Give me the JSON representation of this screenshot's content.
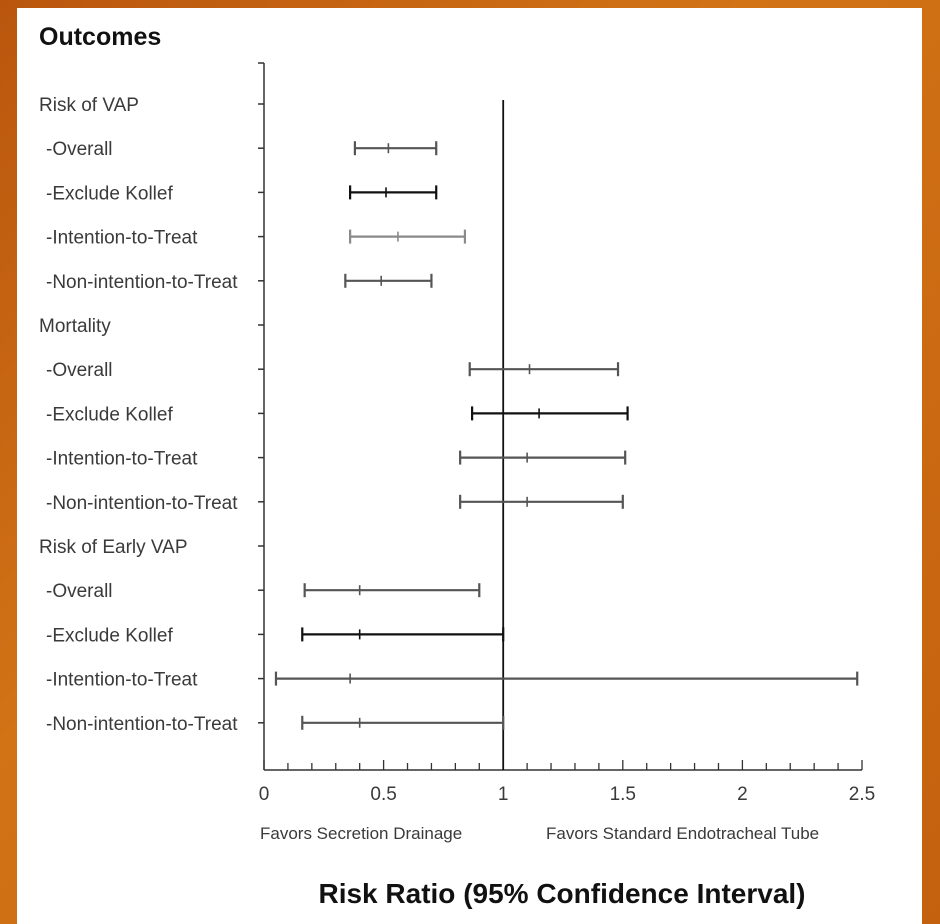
{
  "chart_data": {
    "type": "forest",
    "title": "Outcomes",
    "xlabel": "Risk Ratio (95% Confidence Interval)",
    "favors_left": "Favors Secretion Drainage",
    "favors_right": "Favors Standard Endotracheal Tube",
    "xlim": [
      0,
      2.5
    ],
    "xticks": [
      0,
      0.5,
      1,
      1.5,
      2,
      2.5
    ],
    "xtick_labels": [
      "0",
      "0.5",
      "1",
      "1.5",
      "2",
      "2.5"
    ],
    "reference_line": 1,
    "rows": [
      {
        "label": "Risk of VAP",
        "header": true
      },
      {
        "label": "-Overall",
        "estimate": 0.52,
        "lower": 0.38,
        "upper": 0.72,
        "color": "#555555"
      },
      {
        "label": "-Exclude Kollef",
        "estimate": 0.51,
        "lower": 0.36,
        "upper": 0.72,
        "color": "#111111"
      },
      {
        "label": "-Intention-to-Treat",
        "estimate": 0.56,
        "lower": 0.36,
        "upper": 0.84,
        "color": "#8a8a8a"
      },
      {
        "label": "-Non-intention-to-Treat",
        "estimate": 0.49,
        "lower": 0.34,
        "upper": 0.7,
        "color": "#555555"
      },
      {
        "label": "Mortality",
        "header": true
      },
      {
        "label": "-Overall",
        "estimate": 1.11,
        "lower": 0.86,
        "upper": 1.48,
        "color": "#555555"
      },
      {
        "label": "-Exclude Kollef",
        "estimate": 1.15,
        "lower": 0.87,
        "upper": 1.52,
        "color": "#111111"
      },
      {
        "label": "-Intention-to-Treat",
        "estimate": 1.1,
        "lower": 0.82,
        "upper": 1.51,
        "color": "#555555"
      },
      {
        "label": "-Non-intention-to-Treat",
        "estimate": 1.1,
        "lower": 0.82,
        "upper": 1.5,
        "color": "#555555"
      },
      {
        "label": "Risk of Early VAP",
        "header": true
      },
      {
        "label": "-Overall",
        "estimate": 0.4,
        "lower": 0.17,
        "upper": 0.9,
        "color": "#555555"
      },
      {
        "label": "-Exclude Kollef",
        "estimate": 0.4,
        "lower": 0.16,
        "upper": 1.0,
        "color": "#111111"
      },
      {
        "label": "-Intention-to-Treat",
        "estimate": 0.36,
        "lower": 0.05,
        "upper": 2.48,
        "color": "#555555"
      },
      {
        "label": "-Non-intention-to-Treat",
        "estimate": 0.4,
        "lower": 0.16,
        "upper": 1.0,
        "color": "#555555"
      }
    ]
  }
}
